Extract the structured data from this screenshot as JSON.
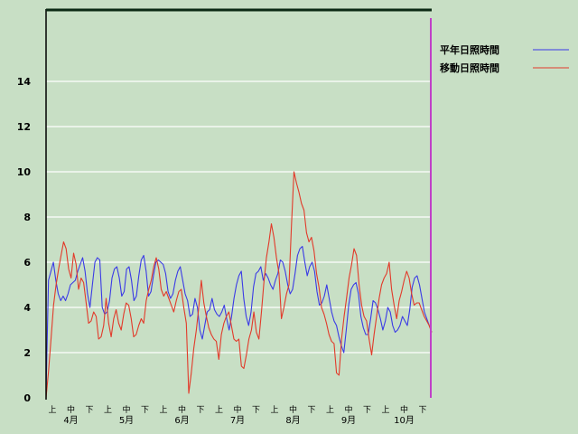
{
  "chart_data": {
    "type": "line",
    "title": "",
    "xlabel": "",
    "ylabel": "",
    "ylim": [
      0,
      16
    ],
    "yticks": [
      0,
      2,
      4,
      6,
      8,
      10,
      12,
      14
    ],
    "grid": true,
    "legend_position": "top-right",
    "dekad_labels": [
      "上",
      "中",
      "下"
    ],
    "months": [
      "4月",
      "5月",
      "6月",
      "7月",
      "8月",
      "9月",
      "10月"
    ],
    "series": [
      {
        "name": "平年日照時間",
        "color": "#3a3ae6",
        "values": [
          0.3,
          5.2,
          5.6,
          6.0,
          5.2,
          4.6,
          4.3,
          4.5,
          4.3,
          4.6,
          5.0,
          5.1,
          5.2,
          5.6,
          5.9,
          6.2,
          5.6,
          4.6,
          4.0,
          5.0,
          6.0,
          6.2,
          6.1,
          4.0,
          3.7,
          3.8,
          4.3,
          5.3,
          5.7,
          5.8,
          5.3,
          4.5,
          4.7,
          5.7,
          5.8,
          5.2,
          4.3,
          4.5,
          5.4,
          6.1,
          6.3,
          5.6,
          4.5,
          4.7,
          5.4,
          6.0,
          6.1,
          6.0,
          5.9,
          5.5,
          4.7,
          4.4,
          4.6,
          5.2,
          5.6,
          5.8,
          5.2,
          4.6,
          4.3,
          3.6,
          3.7,
          4.4,
          4.0,
          3.0,
          2.6,
          3.2,
          3.8,
          3.9,
          4.4,
          3.9,
          3.7,
          3.6,
          3.8,
          4.1,
          3.5,
          3.0,
          3.6,
          4.4,
          5.0,
          5.4,
          5.6,
          4.4,
          3.6,
          3.2,
          3.8,
          4.9,
          5.5,
          5.6,
          5.8,
          5.2,
          5.5,
          5.3,
          5.0,
          4.8,
          5.2,
          5.5,
          6.1,
          6.0,
          5.6,
          5.0,
          4.6,
          4.8,
          5.5,
          6.3,
          6.6,
          6.7,
          6.0,
          5.4,
          5.8,
          6.0,
          5.6,
          4.7,
          4.1,
          4.2,
          4.5,
          5.0,
          4.4,
          3.8,
          3.4,
          3.2,
          2.7,
          2.3,
          2.0,
          3.0,
          4.1,
          4.8,
          5.0,
          5.1,
          4.6,
          3.6,
          3.1,
          2.8,
          2.8,
          3.5,
          4.3,
          4.2,
          3.9,
          3.5,
          3.0,
          3.4,
          4.0,
          3.8,
          3.2,
          2.9,
          3.0,
          3.2,
          3.6,
          3.4,
          3.2,
          3.9,
          4.9,
          5.3,
          5.4,
          5.0,
          4.4,
          3.8,
          3.5,
          3.2,
          2.9
        ]
      },
      {
        "name": "移動日照時間",
        "color": "#e23a2a",
        "values": [
          0.0,
          1.2,
          2.6,
          4.1,
          5.0,
          5.7,
          6.3,
          6.9,
          6.6,
          5.7,
          5.3,
          6.4,
          5.9,
          4.8,
          5.3,
          5.1,
          4.2,
          3.3,
          3.4,
          3.8,
          3.6,
          2.6,
          2.7,
          3.2,
          4.4,
          3.3,
          2.7,
          3.5,
          3.9,
          3.3,
          3.0,
          3.7,
          4.2,
          4.1,
          3.5,
          2.7,
          2.8,
          3.2,
          3.5,
          3.3,
          4.3,
          4.8,
          5.2,
          5.8,
          6.2,
          5.7,
          4.8,
          4.5,
          4.7,
          4.4,
          4.1,
          3.8,
          4.3,
          4.7,
          4.8,
          4.0,
          3.3,
          0.2,
          1.1,
          2.2,
          3.0,
          4.0,
          5.2,
          4.2,
          3.6,
          3.1,
          2.8,
          2.6,
          2.5,
          1.7,
          2.8,
          3.3,
          3.6,
          3.8,
          3.2,
          2.6,
          2.5,
          2.6,
          1.4,
          1.3,
          1.9,
          2.6,
          3.0,
          3.8,
          2.9,
          2.6,
          3.8,
          5.1,
          6.2,
          6.9,
          7.7,
          7.1,
          6.2,
          5.5,
          3.5,
          4.0,
          4.6,
          5.0,
          7.6,
          10.0,
          9.5,
          9.1,
          8.6,
          8.3,
          7.3,
          6.9,
          7.1,
          6.5,
          5.5,
          4.9,
          4.0,
          3.7,
          3.3,
          2.8,
          2.5,
          2.4,
          1.1,
          1.0,
          2.6,
          3.6,
          4.4,
          5.3,
          5.9,
          6.6,
          6.3,
          5.0,
          4.1,
          3.6,
          3.4,
          2.6,
          1.9,
          2.8,
          3.6,
          4.4,
          5.0,
          5.3,
          5.5,
          6.0,
          4.8,
          4.1,
          3.5,
          4.3,
          4.7,
          5.2,
          5.6,
          5.3,
          4.6,
          4.1,
          4.2,
          4.2,
          3.9,
          3.6,
          3.4,
          3.2,
          2.9
        ]
      }
    ]
  }
}
